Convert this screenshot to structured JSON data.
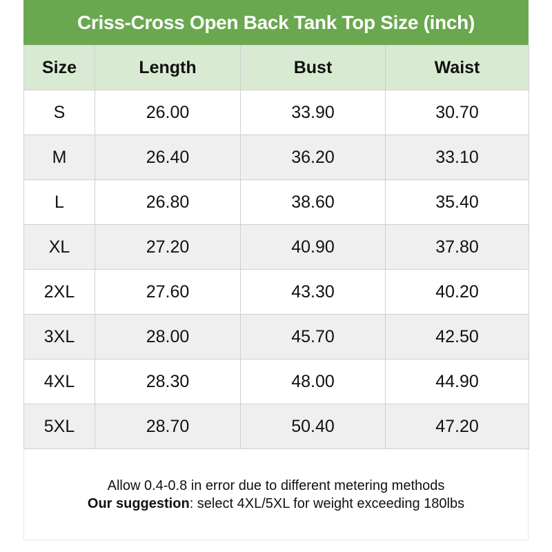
{
  "title": "Criss-Cross Open Back Tank Top Size (inch)",
  "colors": {
    "title_bg": "#6aa84f",
    "header_bg": "#d9ead3",
    "alt_row_bg": "#efefef"
  },
  "columns": [
    "Size",
    "Length",
    "Bust",
    "Waist"
  ],
  "rows": [
    [
      "S",
      "26.00",
      "33.90",
      "30.70"
    ],
    [
      "M",
      "26.40",
      "36.20",
      "33.10"
    ],
    [
      "L",
      "26.80",
      "38.60",
      "35.40"
    ],
    [
      "XL",
      "27.20",
      "40.90",
      "37.80"
    ],
    [
      "2XL",
      "27.60",
      "43.30",
      "40.20"
    ],
    [
      "3XL",
      "28.00",
      "45.70",
      "42.50"
    ],
    [
      "4XL",
      "28.30",
      "48.00",
      "44.90"
    ],
    [
      "5XL",
      "28.70",
      "50.40",
      "47.20"
    ]
  ],
  "footer": {
    "note": "Allow 0.4-0.8 in error due to different metering methods",
    "suggestion_label": "Our suggestion",
    "suggestion_text": ": select 4XL/5XL for weight exceeding 180lbs"
  }
}
